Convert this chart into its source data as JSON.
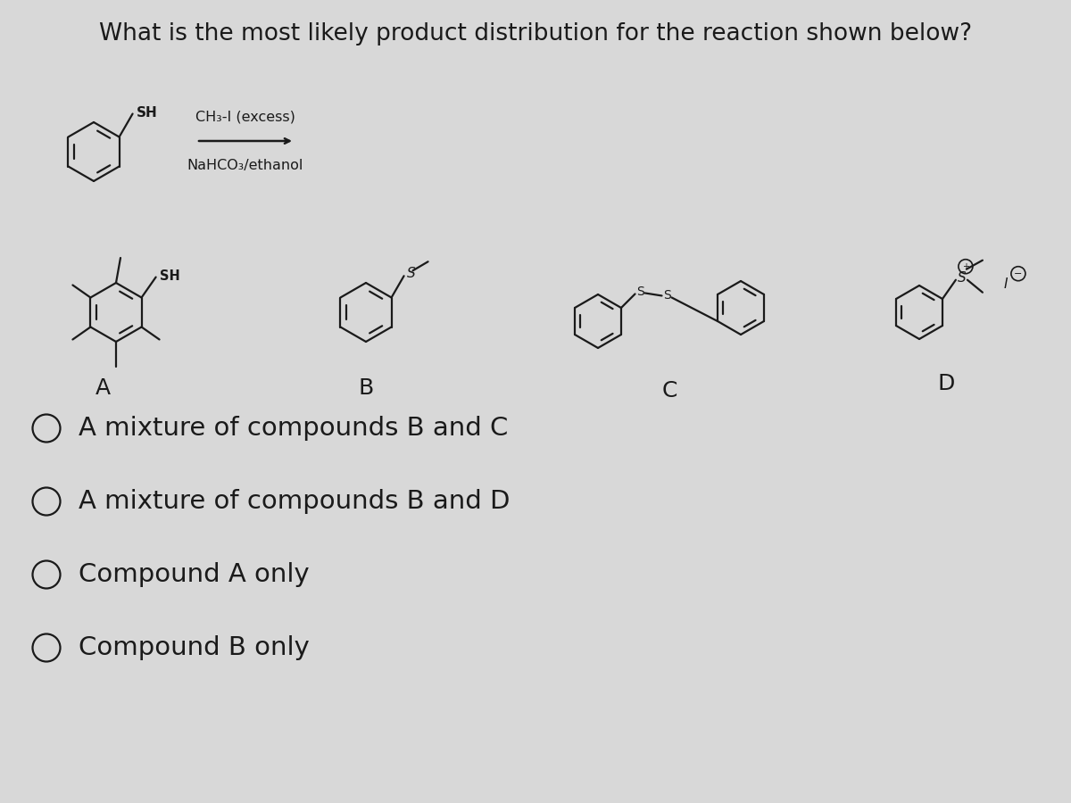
{
  "title": "What is the most likely product distribution for the reaction shown below?",
  "title_fontsize": 19,
  "background_color": "#d8d8d8",
  "text_color": "#1a1a1a",
  "choices": [
    "A mixture of compounds B and C",
    "A mixture of compounds B and D",
    "Compound A only",
    "Compound B only"
  ],
  "choice_fontsize": 21,
  "reagent_line1": "CH₃-I (excess)",
  "reagent_line2": "NaHCO₃/ethanol",
  "compound_labels": [
    "A",
    "B",
    "C",
    "D"
  ],
  "label_fontsize": 18
}
